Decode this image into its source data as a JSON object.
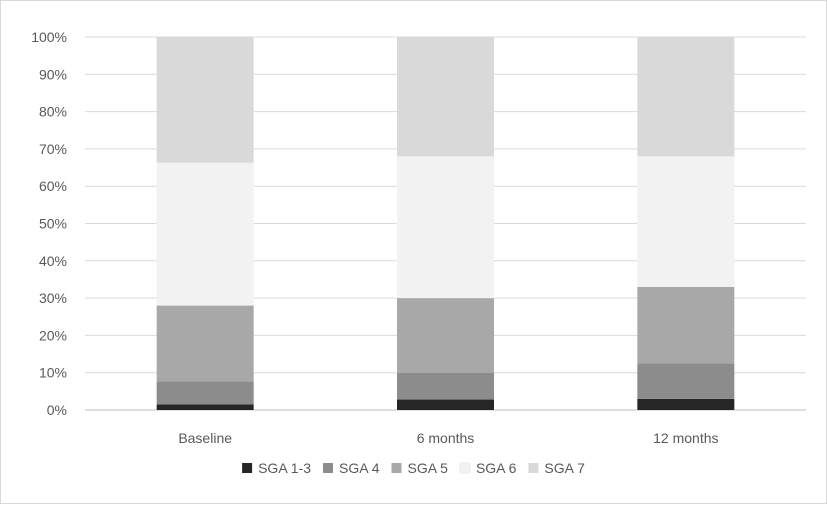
{
  "chart_data": {
    "type": "bar",
    "stacked": true,
    "percent": true,
    "title": "",
    "xlabel": "",
    "ylabel": "",
    "ylim": [
      0,
      100
    ],
    "ytick_step": 10,
    "y_tick_labels": [
      "0%",
      "10%",
      "20%",
      "30%",
      "40%",
      "50%",
      "60%",
      "70%",
      "80%",
      "90%",
      "100%"
    ],
    "grid": true,
    "legend_position": "bottom",
    "categories": [
      "Baseline",
      "6 months",
      "12 months"
    ],
    "series": [
      {
        "name": "SGA 1-3",
        "color": "#262626",
        "values": [
          1.5,
          2.8,
          3.0
        ]
      },
      {
        "name": "SGA 4",
        "color": "#8c8c8c",
        "values": [
          6.2,
          7.2,
          9.5
        ]
      },
      {
        "name": "SGA 5",
        "color": "#a8a8a8",
        "values": [
          20.3,
          20.0,
          20.5
        ]
      },
      {
        "name": "SGA 6",
        "color": "#f2f2f2",
        "values": [
          38.3,
          38.0,
          35.0
        ]
      },
      {
        "name": "SGA 7",
        "color": "#d9d9d9",
        "values": [
          33.7,
          32.0,
          32.0
        ]
      }
    ]
  }
}
